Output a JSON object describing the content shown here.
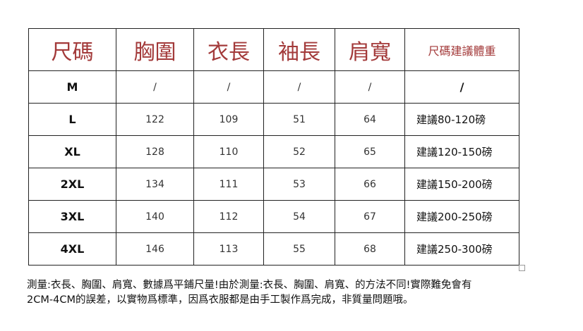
{
  "headers": [
    "尺碼",
    "胸圍",
    "衣長",
    "袖長",
    "肩寬",
    "尺碼建議體重"
  ],
  "rows": [
    [
      "M",
      "/",
      "/",
      "/",
      "/",
      "/"
    ],
    [
      "L",
      "122",
      "109",
      "51",
      "64",
      "建議80-120磅"
    ],
    [
      "XL",
      "128",
      "110",
      "52",
      "65",
      "建議120-150磅"
    ],
    [
      "2XL",
      "134",
      "111",
      "53",
      "66",
      "建議150-200磅"
    ],
    [
      "3XL",
      "140",
      "112",
      "54",
      "67",
      "建議200-250磅"
    ],
    [
      "4XL",
      "146",
      "113",
      "55",
      "68",
      "建議250-300磅"
    ]
  ],
  "note": {
    "line1": "測量:衣長、胸圍、肩寬、數據爲平鋪尺量!由於測量:衣長、胸圍、肩寬、的方法不同!實際難免會有",
    "line2": "2CM-4CM的誤差，以實物爲標準，因爲衣服都是由手工製作爲完成，非質量問題哦。"
  },
  "colors": {
    "header_text": "#a33a3a"
  }
}
